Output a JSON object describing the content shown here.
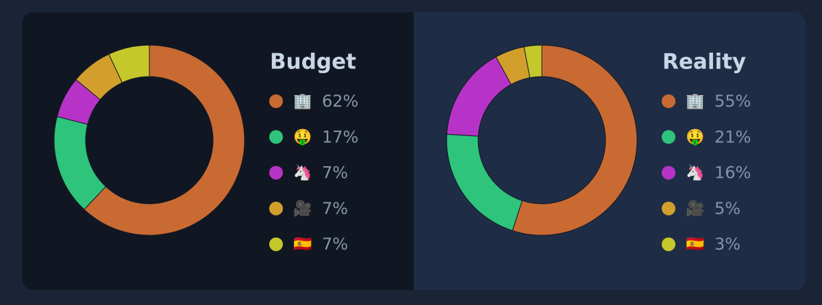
{
  "chart_data": [
    {
      "type": "pie",
      "title": "Budget",
      "categories": [
        "🏢",
        "🤑",
        "🦄",
        "🎥",
        "🇪🇸"
      ],
      "values": [
        62,
        17,
        7,
        7,
        7
      ],
      "value_labels": [
        "62%",
        "17%",
        "7%",
        "7%",
        "7%"
      ],
      "colors": [
        "#c96a32",
        "#2ec47c",
        "#b733c7",
        "#d29f2c",
        "#c5c72b"
      ]
    },
    {
      "type": "pie",
      "title": "Reality",
      "categories": [
        "🏢",
        "🤑",
        "🦄",
        "🎥",
        "🇪🇸"
      ],
      "values": [
        55,
        21,
        16,
        5,
        3
      ],
      "value_labels": [
        "55%",
        "21%",
        "16%",
        "5%",
        "3%"
      ],
      "colors": [
        "#c96a32",
        "#2ec47c",
        "#b733c7",
        "#d29f2c",
        "#c5c72b"
      ]
    }
  ]
}
